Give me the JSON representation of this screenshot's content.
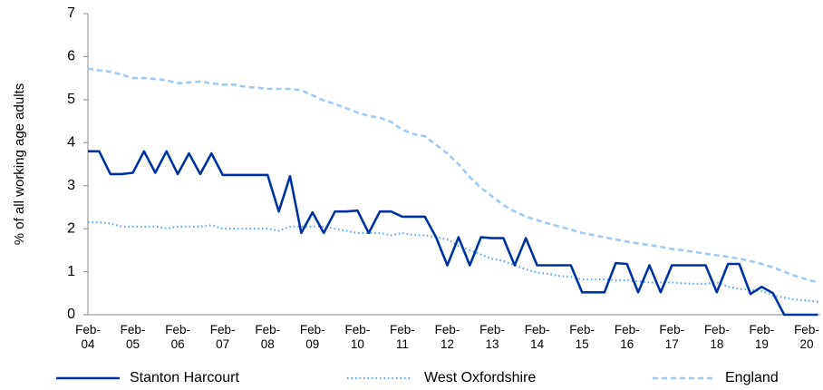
{
  "chart_data": {
    "type": "line",
    "y_label": "% of all working age adults",
    "categories": [
      "Feb-04",
      null,
      null,
      null,
      "Feb-05",
      null,
      null,
      null,
      "Feb-06",
      null,
      null,
      null,
      "Feb-07",
      null,
      null,
      null,
      "Feb-08",
      null,
      null,
      null,
      "Feb-09",
      null,
      null,
      null,
      "Feb-10",
      null,
      null,
      null,
      "Feb-11",
      null,
      null,
      null,
      "Feb-12",
      null,
      null,
      null,
      "Feb-13",
      null,
      null,
      null,
      "Feb-14",
      null,
      null,
      null,
      "Feb-15",
      null,
      null,
      null,
      "Feb-16",
      null,
      null,
      null,
      "Feb-17",
      null,
      null,
      null,
      "Feb-18",
      null,
      null,
      null,
      "Feb-19",
      null,
      null,
      null,
      "Feb-20",
      null
    ],
    "series": [
      {
        "name": "Stanton Harcourt",
        "color": "#0033a0",
        "style": "solid",
        "values": [
          3.8,
          3.8,
          3.27,
          3.27,
          3.3,
          3.8,
          3.3,
          3.8,
          3.27,
          3.75,
          3.27,
          3.75,
          3.25,
          3.25,
          3.25,
          3.25,
          3.25,
          2.4,
          3.22,
          1.9,
          2.38,
          1.9,
          2.4,
          2.4,
          2.42,
          1.9,
          2.4,
          2.4,
          2.28,
          2.28,
          2.28,
          1.8,
          1.15,
          1.8,
          1.15,
          1.8,
          1.78,
          1.78,
          1.15,
          1.78,
          1.15,
          1.15,
          1.15,
          1.15,
          0.52,
          0.52,
          0.52,
          1.2,
          1.18,
          0.52,
          1.15,
          0.52,
          1.15,
          1.15,
          1.15,
          1.15,
          0.52,
          1.18,
          1.18,
          0.48,
          0.65,
          0.5,
          0,
          0,
          0,
          0
        ]
      },
      {
        "name": "West Oxfordshire",
        "color": "#5aaaf0",
        "style": "dotted",
        "values": [
          2.15,
          2.15,
          2.12,
          2.05,
          2.05,
          2.05,
          2.05,
          2.0,
          2.05,
          2.05,
          2.05,
          2.08,
          2.0,
          2.0,
          2.0,
          2.0,
          2.0,
          1.95,
          2.05,
          2.05,
          2.05,
          2.05,
          2.0,
          1.95,
          1.9,
          1.9,
          1.9,
          1.85,
          1.9,
          1.85,
          1.85,
          1.8,
          1.75,
          1.6,
          1.5,
          1.4,
          1.3,
          1.25,
          1.15,
          1.05,
          0.98,
          0.95,
          0.9,
          0.88,
          0.82,
          0.82,
          0.82,
          0.8,
          0.8,
          0.78,
          0.75,
          0.75,
          0.75,
          0.73,
          0.72,
          0.72,
          0.75,
          0.65,
          0.6,
          0.58,
          0.55,
          0.45,
          0.4,
          0.35,
          0.33,
          0.3
        ]
      },
      {
        "name": "England",
        "color": "#9ecbf5",
        "style": "dashed",
        "values": [
          5.72,
          5.68,
          5.65,
          5.58,
          5.5,
          5.5,
          5.48,
          5.45,
          5.38,
          5.4,
          5.42,
          5.38,
          5.35,
          5.35,
          5.3,
          5.28,
          5.25,
          5.25,
          5.25,
          5.22,
          5.1,
          4.98,
          4.9,
          4.8,
          4.7,
          4.62,
          4.58,
          4.48,
          4.3,
          4.2,
          4.15,
          3.95,
          3.75,
          3.5,
          3.2,
          2.95,
          2.75,
          2.55,
          2.4,
          2.28,
          2.2,
          2.12,
          2.05,
          1.98,
          1.9,
          1.85,
          1.8,
          1.75,
          1.7,
          1.66,
          1.62,
          1.58,
          1.53,
          1.5,
          1.46,
          1.42,
          1.38,
          1.35,
          1.3,
          1.25,
          1.18,
          1.1,
          1.0,
          0.9,
          0.82,
          0.75
        ]
      }
    ],
    "ylim": [
      0,
      7
    ],
    "yticks": [
      0,
      1,
      2,
      3,
      4,
      5,
      6,
      7
    ],
    "grid": false,
    "legend": "bottom"
  }
}
